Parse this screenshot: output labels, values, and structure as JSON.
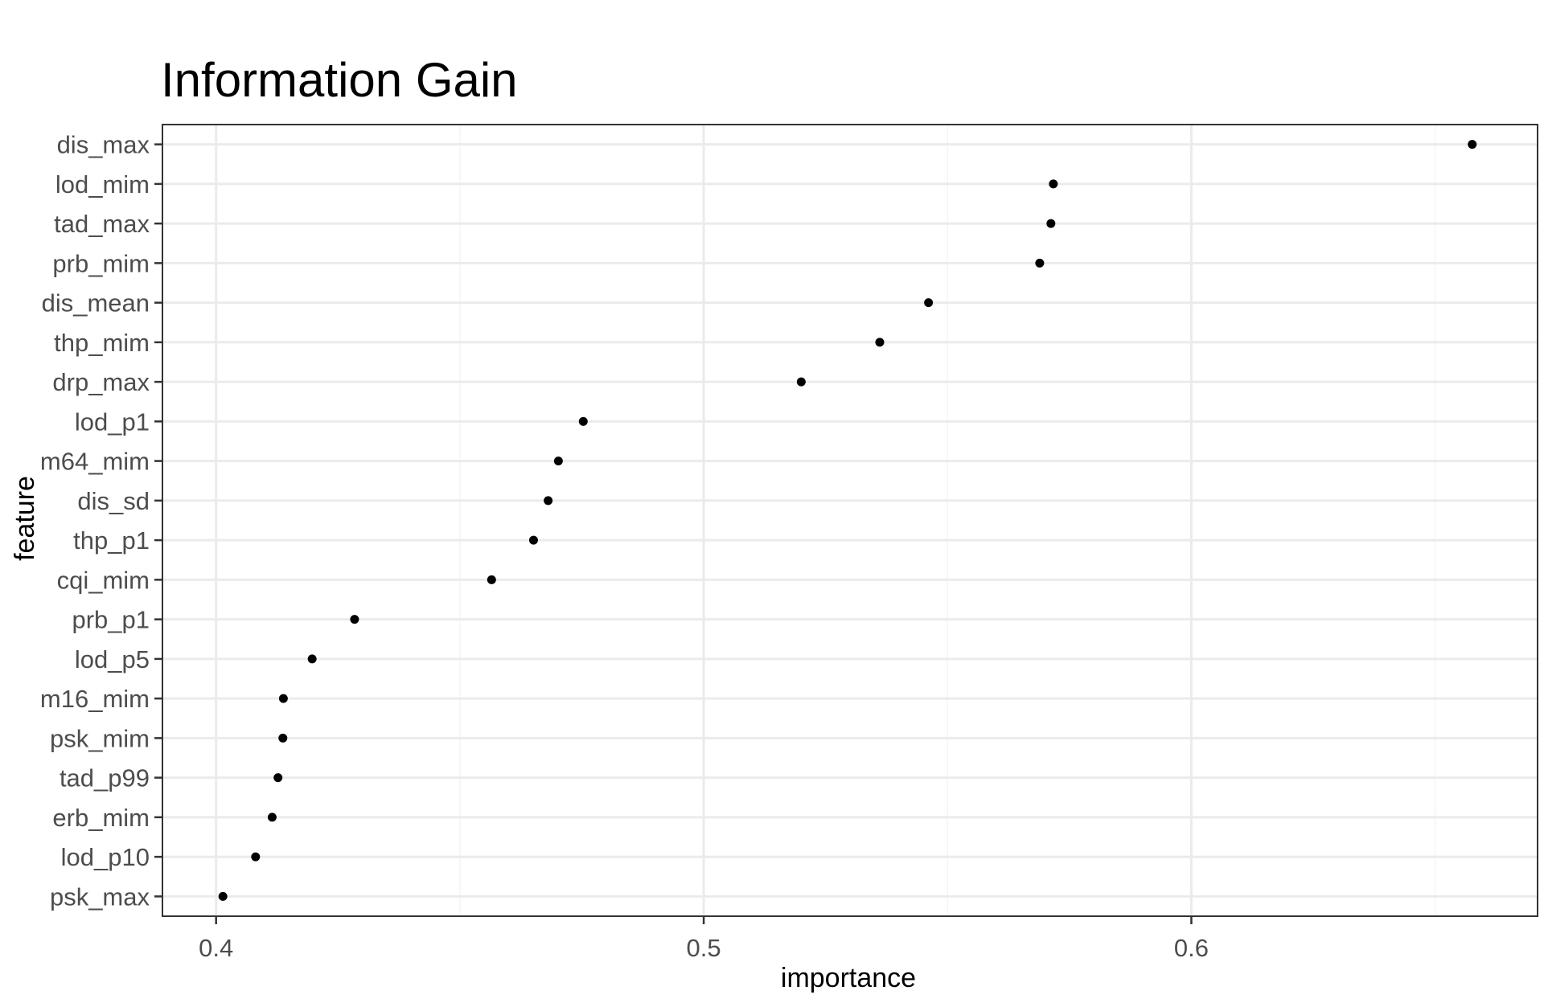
{
  "chart_data": {
    "type": "scatter",
    "title": "Information Gain",
    "xlabel": "importance",
    "ylabel": "feature",
    "xlim": [
      0.389,
      0.671
    ],
    "x_ticks": [
      0.4,
      0.5,
      0.6
    ],
    "x_tick_labels": [
      "0.4",
      "0.5",
      "0.6"
    ],
    "grid": true,
    "legend": "none",
    "point_color": "#000000",
    "categories": [
      "dis_max",
      "lod_mim",
      "tad_max",
      "prb_mim",
      "dis_mean",
      "thp_mim",
      "drp_max",
      "lod_p1",
      "m64_mim",
      "dis_sd",
      "thp_p1",
      "cqi_mim",
      "prb_p1",
      "lod_p5",
      "m16_mim",
      "psk_mim",
      "tad_p99",
      "erb_mim",
      "lod_p10",
      "psk_max"
    ],
    "values": [
      0.6576,
      0.5717,
      0.5712,
      0.5689,
      0.5461,
      0.5361,
      0.52,
      0.4753,
      0.4702,
      0.4681,
      0.4651,
      0.4565,
      0.4284,
      0.4197,
      0.4138,
      0.4137,
      0.4127,
      0.4115,
      0.4081,
      0.4014
    ]
  }
}
